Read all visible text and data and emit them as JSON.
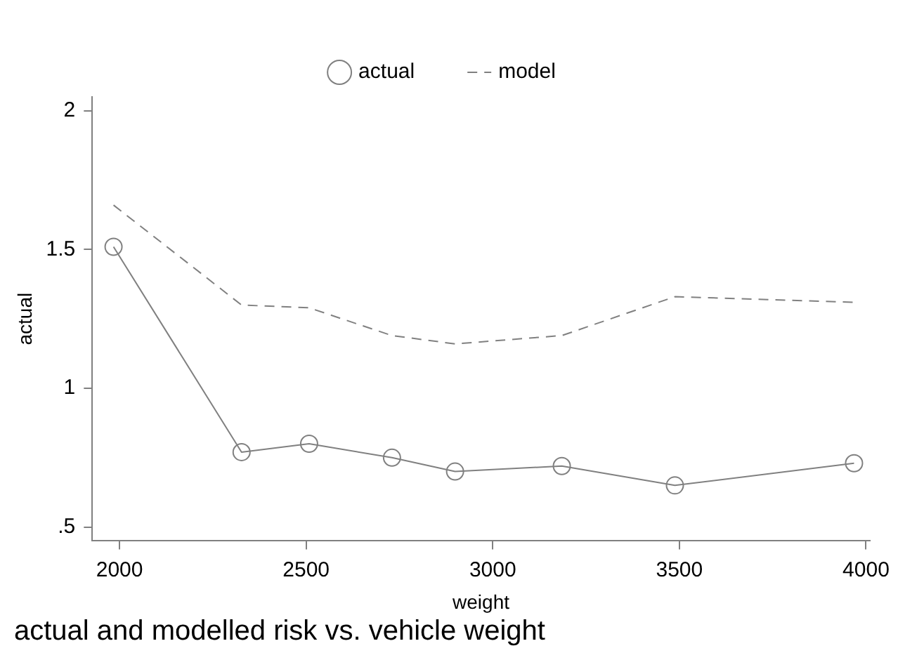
{
  "chart_data": {
    "type": "line",
    "title": "actual and modelled risk vs. vehicle weight",
    "xlabel": "weight",
    "ylabel": "actual",
    "x": [
      1984,
      2327,
      2508,
      2730,
      2899,
      3185,
      3488,
      3968
    ],
    "series": [
      {
        "name": "actual",
        "color": "#808080",
        "marker": "circle",
        "line_style": "solid",
        "values": [
          1.51,
          0.77,
          0.8,
          0.75,
          0.7,
          0.72,
          0.65,
          0.73
        ]
      },
      {
        "name": "model",
        "color": "#808080",
        "marker": "none",
        "line_style": "dashed",
        "values": [
          1.66,
          1.3,
          1.29,
          1.19,
          1.16,
          1.19,
          1.33,
          1.31
        ]
      }
    ],
    "xlim": [
      1927,
      4010
    ],
    "xticks": [
      2000,
      2500,
      3000,
      3500,
      4000
    ],
    "ylim": [
      0.45,
      2.05
    ],
    "yticks": [
      {
        "value": 0.5,
        "label": ".5"
      },
      1,
      1.5,
      2
    ],
    "grid": false,
    "legend": "top"
  }
}
